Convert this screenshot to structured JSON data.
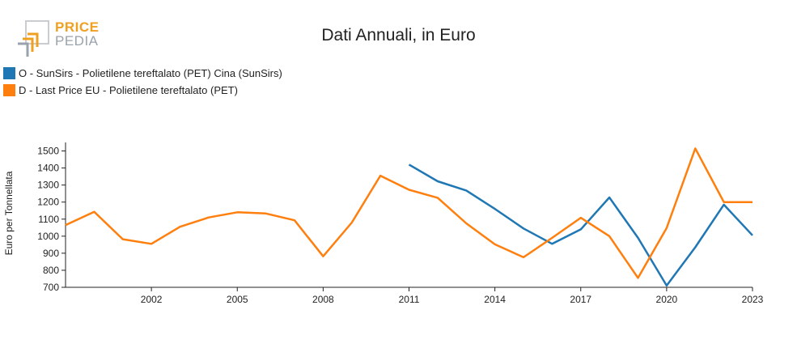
{
  "header": {
    "logo_line1": "PRICE",
    "logo_line2": "PEDIA"
  },
  "chart_data": {
    "type": "line",
    "title": "Dati Annuali, in Euro",
    "xlabel": "",
    "ylabel": "Euro per Tonnellata",
    "xlim": [
      1999,
      2023
    ],
    "ylim": [
      700,
      1550
    ],
    "x_ticks": [
      2002,
      2005,
      2008,
      2011,
      2014,
      2017,
      2020,
      2023
    ],
    "y_ticks": [
      700,
      800,
      900,
      1000,
      1100,
      1200,
      1300,
      1400,
      1500
    ],
    "grid": false,
    "legend_position": "top-left",
    "series": [
      {
        "name": "O - SunSirs - Polietilene tereftalato (PET) Cina (SunSirs)",
        "color": "#1f77b4",
        "x": [
          2011,
          2012,
          2013,
          2014,
          2015,
          2016,
          2017,
          2018,
          2019,
          2020,
          2021,
          2022,
          2023
        ],
        "values": [
          1420,
          1322,
          1268,
          1160,
          1045,
          955,
          1040,
          1227,
          990,
          710,
          935,
          1185,
          1005
        ]
      },
      {
        "name": "D - Last Price EU - Polietilene tereftalato (PET)",
        "color": "#ff7f0e",
        "x": [
          1999,
          2000,
          2001,
          2002,
          2003,
          2004,
          2005,
          2006,
          2007,
          2008,
          2009,
          2010,
          2011,
          2012,
          2013,
          2014,
          2015,
          2016,
          2017,
          2018,
          2019,
          2020,
          2021,
          2022,
          2023
        ],
        "values": [
          1065,
          1143,
          982,
          955,
          1055,
          1110,
          1140,
          1133,
          1093,
          882,
          1080,
          1355,
          1272,
          1225,
          1075,
          952,
          876,
          990,
          1108,
          1000,
          755,
          1048,
          1515,
          1200,
          1200
        ]
      }
    ]
  }
}
